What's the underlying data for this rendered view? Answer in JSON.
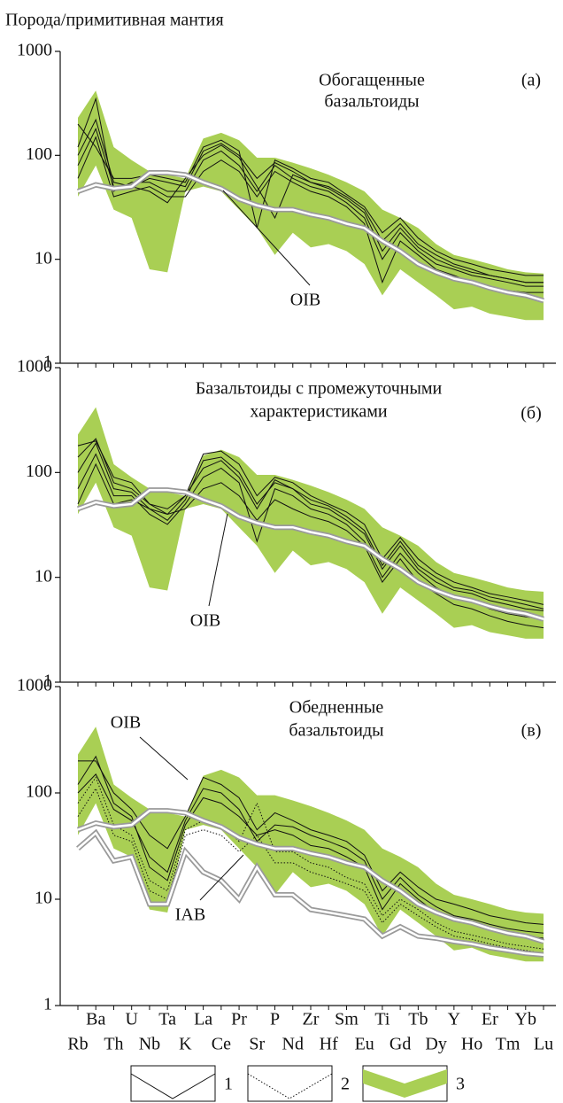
{
  "chart_data": [
    {
      "type": "line",
      "ylabel": "Порода/примитивная мантия",
      "title": [
        "Обогащенные",
        "базальтоиды"
      ],
      "panel_label": "(а)",
      "log_y": true,
      "ylim": [
        1,
        1000
      ],
      "yticks": [
        1,
        10,
        100,
        1000
      ],
      "band": {
        "color": "#a9cf54",
        "upper": [
          230,
          420,
          120,
          90,
          70,
          65,
          60,
          145,
          165,
          140,
          95,
          95,
          85,
          75,
          65,
          55,
          45,
          30,
          25,
          20,
          14,
          11,
          10,
          9,
          8,
          7.5,
          7.3
        ],
        "lower": [
          40,
          80,
          30,
          25,
          8,
          7.5,
          45,
          50,
          45,
          30,
          20,
          11,
          18,
          13,
          14,
          12,
          9,
          4.5,
          8,
          6,
          4.5,
          3.3,
          3.5,
          3,
          2.8,
          2.6,
          2.6
        ]
      },
      "series": [
        {
          "style": "solid",
          "color": "#111111",
          "values": [
            80,
            180,
            50,
            50,
            60,
            55,
            50,
            110,
            130,
            100,
            60,
            85,
            70,
            55,
            50,
            40,
            30,
            15,
            22,
            14,
            11,
            9,
            8,
            7,
            6.5,
            6,
            6
          ]
        },
        {
          "style": "solid",
          "color": "#111111",
          "values": [
            120,
            350,
            45,
            55,
            55,
            45,
            45,
            90,
            110,
            80,
            45,
            80,
            60,
            50,
            45,
            35,
            25,
            10,
            18,
            12,
            9,
            8,
            7,
            6.5,
            6,
            5.5,
            5.5
          ]
        },
        {
          "style": "solid",
          "color": "#111111",
          "values": [
            60,
            150,
            40,
            45,
            50,
            40,
            40,
            70,
            90,
            70,
            40,
            70,
            55,
            45,
            40,
            32,
            22,
            6,
            15,
            11,
            8,
            7,
            6,
            5.5,
            5,
            4.8,
            4.8
          ]
        },
        {
          "style": "solid",
          "color": "#111111",
          "values": [
            200,
            120,
            60,
            60,
            65,
            60,
            55,
            120,
            140,
            110,
            20,
            90,
            75,
            60,
            55,
            42,
            32,
            18,
            25,
            16,
            12,
            10,
            9,
            8,
            7.5,
            7,
            7
          ]
        },
        {
          "style": "solid",
          "color": "#111111",
          "values": [
            100,
            220,
            55,
            50,
            45,
            35,
            60,
            100,
            125,
            95,
            50,
            25,
            65,
            55,
            48,
            38,
            28,
            12,
            20,
            13,
            10,
            8.5,
            7.5,
            7,
            6.5,
            6,
            6
          ]
        }
      ],
      "reference": [
        {
          "name": "OIB",
          "values": [
            45,
            52,
            48,
            50,
            68,
            68,
            65,
            55,
            48,
            38,
            33,
            30,
            30,
            27,
            25,
            22,
            20,
            15,
            12,
            9,
            7.5,
            6.5,
            6,
            5.3,
            4.8,
            4.5,
            4
          ]
        }
      ]
    },
    {
      "type": "line",
      "title": [
        "Базальтоиды с промежуточными",
        "характеристиками"
      ],
      "panel_label": "(б)",
      "log_y": true,
      "ylim": [
        1,
        1000
      ],
      "yticks": [
        1,
        10,
        100,
        1000
      ],
      "band": {
        "color": "#a9cf54",
        "upper": [
          230,
          420,
          120,
          90,
          70,
          65,
          60,
          145,
          165,
          140,
          95,
          95,
          85,
          75,
          65,
          55,
          45,
          30,
          25,
          20,
          14,
          11,
          10,
          9,
          8,
          7.5,
          7.3
        ],
        "lower": [
          40,
          80,
          30,
          25,
          8,
          7.5,
          45,
          50,
          45,
          30,
          20,
          11,
          18,
          13,
          14,
          12,
          9,
          4.5,
          8,
          6,
          4.5,
          3.3,
          3.5,
          3,
          2.8,
          2.6,
          2.6
        ]
      },
      "series": [
        {
          "style": "solid",
          "color": "#111111",
          "values": [
            180,
            200,
            90,
            80,
            50,
            45,
            60,
            150,
            160,
            120,
            60,
            90,
            80,
            60,
            50,
            42,
            32,
            15,
            24,
            15,
            11,
            9,
            8,
            7,
            6.5,
            6,
            5.5
          ]
        },
        {
          "style": "solid",
          "color": "#111111",
          "values": [
            100,
            190,
            70,
            65,
            45,
            35,
            55,
            130,
            140,
            100,
            50,
            80,
            70,
            50,
            45,
            35,
            26,
            12,
            20,
            12,
            9,
            7.5,
            7,
            6,
            5.5,
            5,
            4.8
          ]
        },
        {
          "style": "solid",
          "color": "#111111",
          "values": [
            70,
            150,
            60,
            60,
            40,
            32,
            50,
            90,
            110,
            80,
            22,
            70,
            60,
            45,
            40,
            32,
            22,
            10,
            17,
            11,
            8,
            6.5,
            6,
            5,
            4.5,
            4.2,
            4
          ]
        },
        {
          "style": "solid",
          "color": "#111111",
          "values": [
            140,
            210,
            80,
            70,
            50,
            40,
            60,
            110,
            130,
            90,
            45,
            85,
            70,
            55,
            48,
            38,
            28,
            13,
            22,
            13,
            10,
            8,
            7.5,
            6.5,
            6,
            5.5,
            5
          ]
        },
        {
          "style": "solid",
          "color": "#111111",
          "values": [
            50,
            120,
            50,
            55,
            45,
            40,
            45,
            70,
            80,
            60,
            35,
            55,
            45,
            38,
            34,
            28,
            20,
            9,
            15,
            9,
            7,
            5.5,
            5,
            4.3,
            3.8,
            3.5,
            3.3
          ]
        }
      ],
      "reference": [
        {
          "name": "OIB",
          "values": [
            45,
            52,
            48,
            50,
            68,
            68,
            65,
            55,
            48,
            38,
            33,
            30,
            30,
            27,
            25,
            22,
            20,
            15,
            12,
            9,
            7.5,
            6.5,
            6,
            5.3,
            4.8,
            4.5,
            4
          ]
        }
      ]
    },
    {
      "type": "line",
      "title": [
        "Обедненные",
        "базальтоиды"
      ],
      "panel_label": "(в)",
      "log_y": true,
      "ylim": [
        1,
        1000
      ],
      "yticks": [
        1,
        10,
        100,
        1000
      ],
      "categories": [
        "Rb",
        "Ba",
        "Th",
        "U",
        "Nb",
        "Ta",
        "K",
        "La",
        "Ce",
        "Pr",
        "Sr",
        "P",
        "Nd",
        "Zr",
        "Hf",
        "Sm",
        "Eu",
        "Ti",
        "Gd",
        "Tb",
        "Dy",
        "Y",
        "Ho",
        "Er",
        "Tm",
        "Yb",
        "Lu"
      ],
      "band": {
        "color": "#a9cf54",
        "upper": [
          230,
          420,
          120,
          90,
          70,
          65,
          60,
          145,
          165,
          140,
          95,
          95,
          85,
          75,
          65,
          55,
          45,
          30,
          25,
          20,
          14,
          11,
          10,
          9,
          8,
          7.5,
          7.3
        ],
        "lower": [
          40,
          80,
          30,
          25,
          8,
          7.5,
          45,
          50,
          45,
          30,
          20,
          11,
          18,
          13,
          14,
          12,
          9,
          4.5,
          8,
          6,
          4.5,
          3.3,
          3.5,
          3,
          2.8,
          2.6,
          2.6
        ]
      },
      "series": [
        {
          "style": "solid",
          "color": "#111111",
          "values": [
            200,
            200,
            100,
            70,
            40,
            30,
            60,
            140,
            120,
            90,
            45,
            65,
            55,
            45,
            40,
            35,
            26,
            12,
            18,
            13,
            10,
            9,
            8,
            7,
            6.5,
            6,
            5.8
          ]
        },
        {
          "style": "solid",
          "color": "#111111",
          "values": [
            120,
            220,
            80,
            60,
            20,
            15,
            50,
            90,
            80,
            60,
            40,
            45,
            40,
            32,
            30,
            25,
            20,
            8,
            14,
            10,
            7.5,
            6.5,
            6,
            5.2,
            4.8,
            4.5,
            4.3
          ]
        },
        {
          "style": "solid",
          "color": "#111111",
          "values": [
            100,
            150,
            70,
            55,
            25,
            18,
            55,
            110,
            100,
            70,
            35,
            50,
            48,
            40,
            35,
            30,
            23,
            10,
            16,
            11,
            8.5,
            7,
            6.5,
            5.8,
            5.3,
            5,
            4.8
          ]
        },
        {
          "style": "dotted",
          "color": "#111111",
          "values": [
            60,
            110,
            40,
            35,
            12,
            10,
            40,
            45,
            40,
            28,
            40,
            22,
            22,
            18,
            16,
            14,
            12,
            6,
            9,
            7,
            5.5,
            4.5,
            4.2,
            3.8,
            3.5,
            3.3,
            3.1
          ]
        },
        {
          "style": "dotted",
          "color": "#111111",
          "values": [
            80,
            140,
            50,
            40,
            15,
            12,
            45,
            55,
            50,
            35,
            80,
            28,
            28,
            22,
            20,
            16,
            14,
            7,
            10,
            8,
            6,
            5,
            4.6,
            4.2,
            3.8,
            3.6,
            3.4
          ]
        }
      ],
      "reference": [
        {
          "name": "OIB",
          "values": [
            45,
            52,
            48,
            50,
            68,
            68,
            65,
            55,
            48,
            38,
            33,
            30,
            30,
            27,
            25,
            22,
            20,
            15,
            12,
            9,
            7.5,
            6.5,
            6,
            5.3,
            4.8,
            4.5,
            4
          ]
        },
        {
          "name": "IAB",
          "values": [
            30,
            42,
            23,
            25,
            9,
            9,
            28,
            18,
            15,
            10,
            20,
            11,
            11,
            8,
            7.5,
            7,
            6.5,
            4.5,
            5.5,
            4.5,
            4.3,
            4,
            3.8,
            3.5,
            3.3,
            3.1,
            3
          ]
        }
      ],
      "legend": [
        {
          "label": "1",
          "style": "solid"
        },
        {
          "label": "2",
          "style": "dotted"
        },
        {
          "label": "3",
          "style": "band"
        }
      ]
    }
  ]
}
